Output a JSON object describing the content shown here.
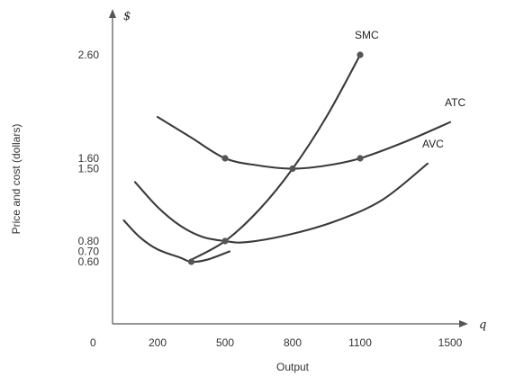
{
  "chart_data": {
    "type": "line",
    "title": "",
    "xlabel": "Output",
    "ylabel": "Price and cost (dollars)",
    "x_unit": "q",
    "y_unit": "$",
    "origin_label": "0",
    "xlim": [
      0,
      2000
    ],
    "ylim": [
      0,
      3.0
    ],
    "x_ticks": [
      200,
      500,
      800,
      1100,
      1500
    ],
    "y_ticks": [
      0.6,
      0.7,
      0.8,
      1.5,
      1.6,
      2.6
    ],
    "x_tick_labels": [
      "200",
      "500",
      "800",
      "1100",
      "1500"
    ],
    "y_tick_labels": [
      "0.60",
      "0.70",
      "0.80",
      "1.50",
      "1.60",
      "2.60"
    ],
    "grid": false,
    "legend": "none",
    "series": [
      {
        "name": "SMC",
        "x": [
          350,
          500,
          650,
          800,
          950,
          1100
        ],
        "y": [
          0.62,
          0.8,
          1.1,
          1.5,
          2.0,
          2.6
        ]
      },
      {
        "name": "ATC",
        "x": [
          200,
          350,
          500,
          650,
          800,
          950,
          1100,
          1300,
          1500
        ],
        "y": [
          2.0,
          1.8,
          1.6,
          1.53,
          1.5,
          1.53,
          1.6,
          1.76,
          1.95
        ]
      },
      {
        "name": "AVC",
        "x": [
          100,
          200,
          300,
          400,
          500,
          600,
          800,
          1000,
          1200,
          1400
        ],
        "y": [
          1.37,
          1.13,
          0.95,
          0.84,
          0.8,
          0.79,
          0.87,
          1.0,
          1.2,
          1.55
        ]
      },
      {
        "name": "",
        "x": [
          50,
          120,
          200,
          300,
          350,
          420,
          520
        ],
        "y": [
          1.0,
          0.84,
          0.72,
          0.64,
          0.6,
          0.62,
          0.7
        ]
      }
    ],
    "highlighted_points": [
      {
        "x": 350,
        "y": 0.6
      },
      {
        "x": 500,
        "y": 0.8
      },
      {
        "x": 500,
        "y": 1.6
      },
      {
        "x": 800,
        "y": 1.5
      },
      {
        "x": 1100,
        "y": 1.6
      },
      {
        "x": 1100,
        "y": 2.6
      }
    ],
    "colors": {
      "curve": "#3a3a3a",
      "axis": "#555555",
      "dot": "#555555"
    }
  }
}
